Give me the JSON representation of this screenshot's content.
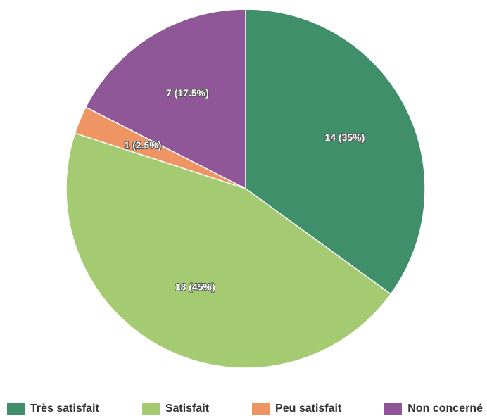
{
  "chart_data": {
    "type": "pie",
    "title": "",
    "legend_position": "bottom",
    "slices": [
      {
        "label": "Très satisfait",
        "value": 14,
        "percent": 35,
        "display": "14 (35%)",
        "color": "#3f8f6b"
      },
      {
        "label": "Satisfait",
        "value": 18,
        "percent": 45,
        "display": "18 (45%)",
        "color": "#a4cb72"
      },
      {
        "label": "Peu satisfait",
        "value": 1,
        "percent": 2.5,
        "display": "1 (2.5%)",
        "color": "#ef9463"
      },
      {
        "label": "Non concerné",
        "value": 7,
        "percent": 17.5,
        "display": "7 (17.5%)",
        "color": "#8f5797"
      }
    ]
  }
}
